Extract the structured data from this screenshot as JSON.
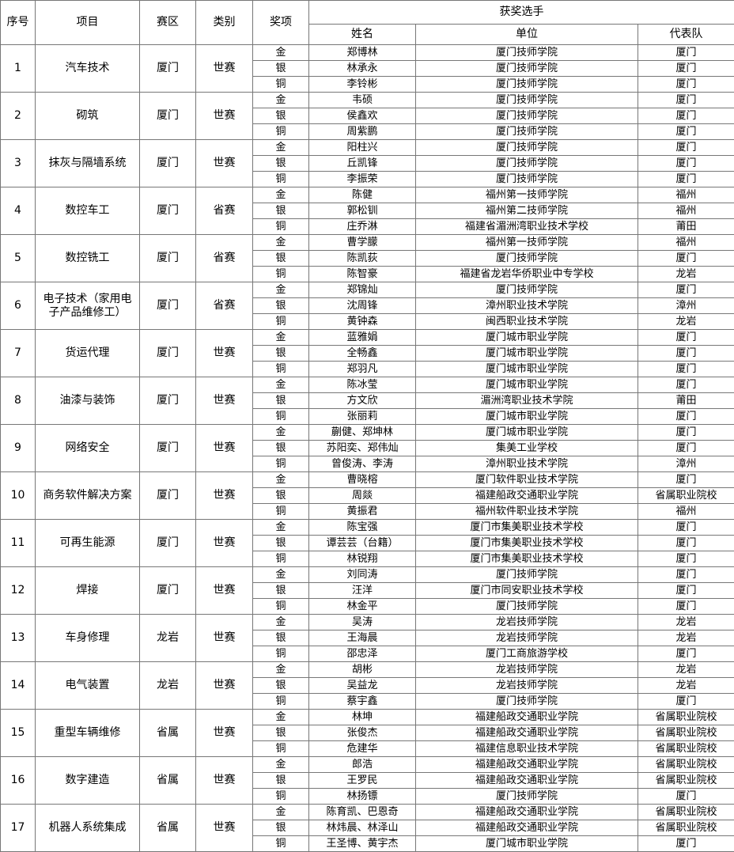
{
  "table": {
    "headers": {
      "no": "序号",
      "item": "项目",
      "zone": "赛区",
      "category": "类别",
      "award": "奖项",
      "winners": "获奖选手",
      "name": "姓名",
      "unit": "单位",
      "team": "代表队"
    },
    "groups": [
      {
        "no": 1,
        "item": "汽车技术",
        "zone": "厦门",
        "category": "世赛",
        "rows": [
          {
            "award": "金",
            "name": "郑博林",
            "unit": "厦门技师学院",
            "team": "厦门"
          },
          {
            "award": "银",
            "name": "林承永",
            "unit": "厦门技师学院",
            "team": "厦门"
          },
          {
            "award": "铜",
            "name": "李铃彬",
            "unit": "厦门技师学院",
            "team": "厦门"
          }
        ]
      },
      {
        "no": 2,
        "item": "砌筑",
        "zone": "厦门",
        "category": "世赛",
        "rows": [
          {
            "award": "金",
            "name": "韦硕",
            "unit": "厦门技师学院",
            "team": "厦门"
          },
          {
            "award": "银",
            "name": "侯鑫欢",
            "unit": "厦门技师学院",
            "team": "厦门"
          },
          {
            "award": "铜",
            "name": "周紫鹏",
            "unit": "厦门技师学院",
            "team": "厦门"
          }
        ]
      },
      {
        "no": 3,
        "item": "抹灰与隔墙系统",
        "zone": "厦门",
        "category": "世赛",
        "rows": [
          {
            "award": "金",
            "name": "阳柱兴",
            "unit": "厦门技师学院",
            "team": "厦门"
          },
          {
            "award": "银",
            "name": "丘凯锋",
            "unit": "厦门技师学院",
            "team": "厦门"
          },
          {
            "award": "铜",
            "name": "李振荣",
            "unit": "厦门技师学院",
            "team": "厦门"
          }
        ]
      },
      {
        "no": 4,
        "item": "数控车工",
        "zone": "厦门",
        "category": "省赛",
        "rows": [
          {
            "award": "金",
            "name": "陈健",
            "unit": "福州第一技师学院",
            "team": "福州"
          },
          {
            "award": "银",
            "name": "郭松钏",
            "unit": "福州第二技师学院",
            "team": "福州"
          },
          {
            "award": "铜",
            "name": "庄乔淋",
            "unit": "福建省湄洲湾职业技术学校",
            "team": "莆田"
          }
        ]
      },
      {
        "no": 5,
        "item": "数控铣工",
        "zone": "厦门",
        "category": "省赛",
        "rows": [
          {
            "award": "金",
            "name": "曹学朦",
            "unit": "福州第一技师学院",
            "team": "福州"
          },
          {
            "award": "银",
            "name": "陈凯荻",
            "unit": "厦门技师学院",
            "team": "厦门"
          },
          {
            "award": "铜",
            "name": "陈智豪",
            "unit": "福建省龙岩华侨职业中专学校",
            "team": "龙岩"
          }
        ]
      },
      {
        "no": 6,
        "item": "电子技术（家用电子产品维修工）",
        "zone": "厦门",
        "category": "省赛",
        "rows": [
          {
            "award": "金",
            "name": "郑锦灿",
            "unit": "厦门技师学院",
            "team": "厦门"
          },
          {
            "award": "银",
            "name": "沈周锋",
            "unit": "漳州职业技术学院",
            "team": "漳州"
          },
          {
            "award": "铜",
            "name": "黄钟森",
            "unit": "闽西职业技术学院",
            "team": "龙岩"
          }
        ]
      },
      {
        "no": 7,
        "item": "货运代理",
        "zone": "厦门",
        "category": "世赛",
        "rows": [
          {
            "award": "金",
            "name": "蓝雅娟",
            "unit": "厦门城市职业学院",
            "team": "厦门"
          },
          {
            "award": "银",
            "name": "全畅鑫",
            "unit": "厦门城市职业学院",
            "team": "厦门"
          },
          {
            "award": "铜",
            "name": "郑羽凡",
            "unit": "厦门城市职业学院",
            "team": "厦门"
          }
        ]
      },
      {
        "no": 8,
        "item": "油漆与装饰",
        "zone": "厦门",
        "category": "世赛",
        "rows": [
          {
            "award": "金",
            "name": "陈冰莹",
            "unit": "厦门城市职业学院",
            "team": "厦门"
          },
          {
            "award": "银",
            "name": "方文欣",
            "unit": "湄洲湾职业技术学院",
            "team": "莆田"
          },
          {
            "award": "铜",
            "name": "张丽莉",
            "unit": "厦门城市职业学院",
            "team": "厦门"
          }
        ]
      },
      {
        "no": 9,
        "item": "网络安全",
        "zone": "厦门",
        "category": "世赛",
        "rows": [
          {
            "award": "金",
            "name": "蒯健、郑坤林",
            "unit": "厦门城市职业学院",
            "team": "厦门"
          },
          {
            "award": "银",
            "name": "苏阳奕、郑伟灿",
            "unit": "集美工业学校",
            "team": "厦门"
          },
          {
            "award": "铜",
            "name": "曾俊涛、李涛",
            "unit": "漳州职业技术学院",
            "team": "漳州"
          }
        ]
      },
      {
        "no": 10,
        "item": "商务软件解决方案",
        "zone": "厦门",
        "category": "世赛",
        "rows": [
          {
            "award": "金",
            "name": "曹晓榕",
            "unit": "厦门软件职业技术学院",
            "team": "厦门"
          },
          {
            "award": "银",
            "name": "周燚",
            "unit": "福建船政交通职业学院",
            "team": "省属职业院校"
          },
          {
            "award": "铜",
            "name": "黄振君",
            "unit": "福州软件职业技术学院",
            "team": "福州"
          }
        ]
      },
      {
        "no": 11,
        "item": "可再生能源",
        "zone": "厦门",
        "category": "世赛",
        "rows": [
          {
            "award": "金",
            "name": "陈宝强",
            "unit": "厦门市集美职业技术学校",
            "team": "厦门"
          },
          {
            "award": "银",
            "name": "谭芸芸（台籍）",
            "unit": "厦门市集美职业技术学校",
            "team": "厦门"
          },
          {
            "award": "铜",
            "name": "林锐翔",
            "unit": "厦门市集美职业技术学校",
            "team": "厦门"
          }
        ]
      },
      {
        "no": 12,
        "item": "焊接",
        "zone": "厦门",
        "category": "世赛",
        "rows": [
          {
            "award": "金",
            "name": "刘同涛",
            "unit": "厦门技师学院",
            "team": "厦门"
          },
          {
            "award": "银",
            "name": "汪洋",
            "unit": "厦门市同安职业技术学校",
            "team": "厦门"
          },
          {
            "award": "铜",
            "name": "林金平",
            "unit": "厦门技师学院",
            "team": "厦门"
          }
        ]
      },
      {
        "no": 13,
        "item": "车身修理",
        "zone": "龙岩",
        "category": "世赛",
        "rows": [
          {
            "award": "金",
            "name": "吴涛",
            "unit": "龙岩技师学院",
            "team": "龙岩"
          },
          {
            "award": "银",
            "name": "王海晨",
            "unit": "龙岩技师学院",
            "team": "龙岩"
          },
          {
            "award": "铜",
            "name": "邵忠泽",
            "unit": "厦门工商旅游学校",
            "team": "厦门"
          }
        ]
      },
      {
        "no": 14,
        "item": "电气装置",
        "zone": "龙岩",
        "category": "世赛",
        "rows": [
          {
            "award": "金",
            "name": "胡彬",
            "unit": "龙岩技师学院",
            "team": "龙岩"
          },
          {
            "award": "银",
            "name": "吴益龙",
            "unit": "龙岩技师学院",
            "team": "龙岩"
          },
          {
            "award": "铜",
            "name": "蔡宇鑫",
            "unit": "厦门技师学院",
            "team": "厦门"
          }
        ]
      },
      {
        "no": 15,
        "item": "重型车辆维修",
        "zone": "省属",
        "category": "世赛",
        "rows": [
          {
            "award": "金",
            "name": "林坤",
            "unit": "福建船政交通职业学院",
            "team": "省属职业院校"
          },
          {
            "award": "银",
            "name": "张俊杰",
            "unit": "福建船政交通职业学院",
            "team": "省属职业院校"
          },
          {
            "award": "铜",
            "name": "危建华",
            "unit": "福建信息职业技术学院",
            "team": "省属职业院校"
          }
        ]
      },
      {
        "no": 16,
        "item": "数字建造",
        "zone": "省属",
        "category": "世赛",
        "rows": [
          {
            "award": "金",
            "name": "郎浩",
            "unit": "福建船政交通职业学院",
            "team": "省属职业院校"
          },
          {
            "award": "银",
            "name": "王罗民",
            "unit": "福建船政交通职业学院",
            "team": "省属职业院校"
          },
          {
            "award": "铜",
            "name": "林扬镖",
            "unit": "厦门技师学院",
            "team": "厦门"
          }
        ]
      },
      {
        "no": 17,
        "item": "机器人系统集成",
        "zone": "省属",
        "category": "世赛",
        "rows": [
          {
            "award": "金",
            "name": "陈育凯、巴恩奇",
            "unit": "福建船政交通职业学院",
            "team": "省属职业院校"
          },
          {
            "award": "银",
            "name": "林炜晨、林泽山",
            "unit": "福建船政交通职业学院",
            "team": "省属职业院校"
          },
          {
            "award": "铜",
            "name": "王圣博、黄宇杰",
            "unit": "厦门城市职业学院",
            "team": "厦门"
          }
        ]
      }
    ]
  }
}
